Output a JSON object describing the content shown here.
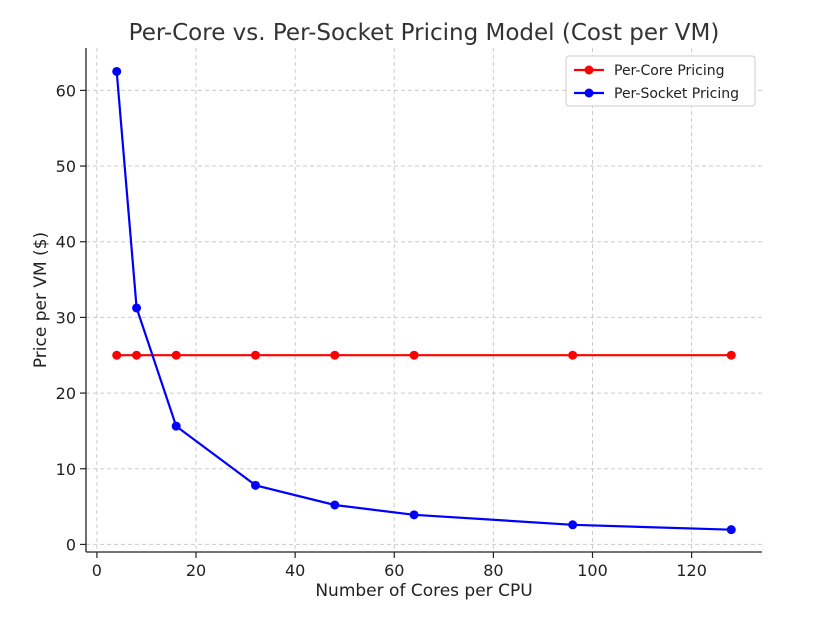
{
  "chart_data": {
    "type": "line",
    "title": "Per-Core vs. Per-Socket Pricing Model (Cost per VM)",
    "xlabel": "Number of Cores per CPU",
    "ylabel": "Price per VM ($)",
    "xlim": [
      -2.2,
      134.2
    ],
    "ylim": [
      -1.0,
      65.6
    ],
    "xticks": [
      0,
      20,
      40,
      60,
      80,
      100,
      120
    ],
    "yticks": [
      0,
      10,
      20,
      30,
      40,
      50,
      60
    ],
    "grid": true,
    "legend_position": "top-right",
    "series": [
      {
        "name": "Per-Core Pricing",
        "color": "#ff0000",
        "x": [
          4,
          8,
          16,
          32,
          48,
          64,
          96,
          128
        ],
        "y": [
          25,
          25,
          25,
          25,
          25,
          25,
          25,
          25
        ]
      },
      {
        "name": "Per-Socket Pricing",
        "color": "#0000ff",
        "x": [
          4,
          8,
          16,
          32,
          48,
          64,
          96,
          128
        ],
        "y": [
          62.5,
          31.25,
          15.63,
          7.81,
          5.21,
          3.91,
          2.6,
          1.95
        ]
      }
    ]
  }
}
